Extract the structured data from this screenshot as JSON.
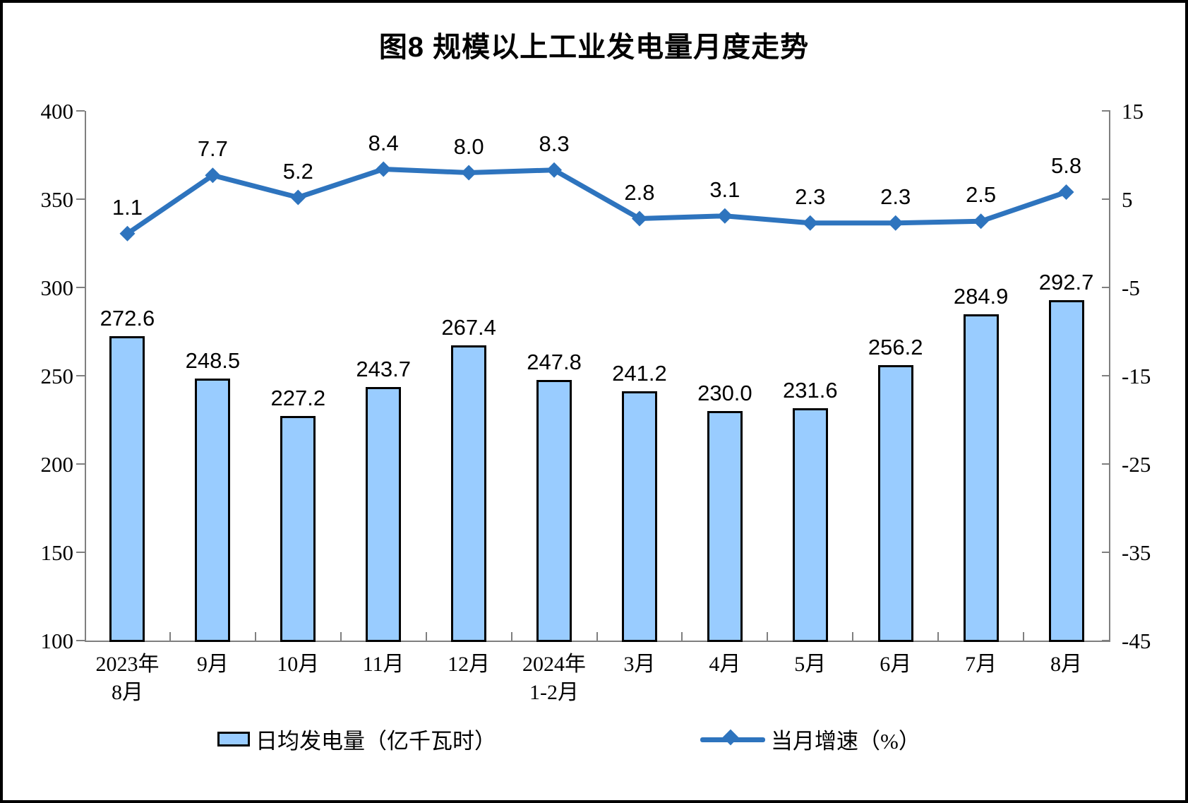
{
  "title": "图8 规模以上工业发电量月度走势",
  "chart_data": {
    "type": "bar",
    "subtype": "bar-line-combo",
    "title": "图8 规模以上工业发电量月度走势",
    "categories": [
      "2023年\n8月",
      "9月",
      "10月",
      "11月",
      "12月",
      "2024年\n1-2月",
      "3月",
      "4月",
      "5月",
      "6月",
      "7月",
      "8月"
    ],
    "series": [
      {
        "name": "日均发电量（亿千瓦时）",
        "chart_type": "bar",
        "axis": "left",
        "values": [
          272.6,
          248.5,
          227.2,
          243.7,
          267.4,
          247.8,
          241.2,
          230.0,
          231.6,
          256.2,
          284.9,
          292.7
        ],
        "labels": [
          "272.6",
          "248.5",
          "227.2",
          "243.7",
          "267.4",
          "247.8",
          "241.2",
          "230.0",
          "231.6",
          "256.2",
          "284.9",
          "292.7"
        ]
      },
      {
        "name": "当月增速（%）",
        "chart_type": "line",
        "axis": "right",
        "values": [
          1.1,
          7.7,
          5.2,
          8.4,
          8.0,
          8.3,
          2.8,
          3.1,
          2.3,
          2.3,
          2.5,
          5.8
        ],
        "labels": [
          "1.1",
          "7.7",
          "5.2",
          "8.4",
          "8.0",
          "8.3",
          "2.8",
          "3.1",
          "2.3",
          "2.3",
          "2.5",
          "5.8"
        ]
      }
    ],
    "left_axis": {
      "min": 100,
      "max": 400,
      "tick_interval": 50,
      "ticks": [
        "400",
        "350",
        "300",
        "250",
        "200",
        "150",
        "100"
      ]
    },
    "right_axis": {
      "min": -45,
      "max": 15,
      "tick_interval": 10,
      "ticks": [
        "15",
        "5",
        "-5",
        "-15",
        "-25",
        "-35",
        "-45"
      ]
    },
    "legend_position": "bottom",
    "grid": "off",
    "colors": {
      "bar_fill": "#99CCFF",
      "bar_border": "#000000",
      "line": "#2E74BE",
      "axis_line": "#7F7F7F",
      "text": "#000000",
      "background": "#FFFFFF",
      "frame_border": "#000000"
    }
  }
}
